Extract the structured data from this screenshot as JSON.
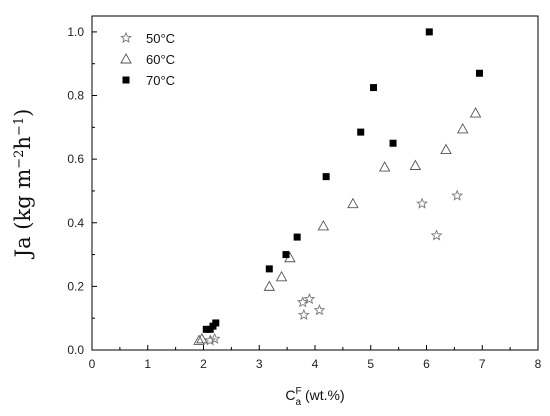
{
  "chart_data": {
    "type": "scatter",
    "xlabel": {
      "base": "C",
      "sup": "F",
      "sub": "a",
      "suffix": " (wt.%)"
    },
    "ylabel": {
      "text": "Ja (kg m",
      "sup1": "−2",
      "mid": "h",
      "sup2": "−1",
      "end": ")"
    },
    "xlim": [
      0,
      8
    ],
    "ylim": [
      0,
      1.05
    ],
    "x_ticks": [
      0,
      1,
      2,
      3,
      4,
      5,
      6,
      7,
      8
    ],
    "x_tick_labels": [
      "0",
      "1",
      "2",
      "3",
      "4",
      "5",
      "6",
      "7",
      "8"
    ],
    "y_ticks": [
      0,
      0.2,
      0.4,
      0.6,
      0.8,
      1.0
    ],
    "y_tick_labels": [
      "0.0",
      "0.2",
      "0.4",
      "0.6",
      "0.8",
      "1.0"
    ],
    "grid": false,
    "legend_position": "top-left",
    "series": [
      {
        "name": "50°C",
        "marker": "star",
        "color": "#777777",
        "points": [
          {
            "x": 2.12,
            "y": 0.03
          },
          {
            "x": 2.2,
            "y": 0.035
          },
          {
            "x": 3.78,
            "y": 0.15
          },
          {
            "x": 3.9,
            "y": 0.16
          },
          {
            "x": 3.8,
            "y": 0.11
          },
          {
            "x": 4.08,
            "y": 0.125
          },
          {
            "x": 5.92,
            "y": 0.46
          },
          {
            "x": 6.18,
            "y": 0.36
          },
          {
            "x": 6.55,
            "y": 0.485
          }
        ]
      },
      {
        "name": "60°C",
        "marker": "triangle-open",
        "color": "#555555",
        "points": [
          {
            "x": 1.92,
            "y": 0.03
          },
          {
            "x": 1.97,
            "y": 0.035
          },
          {
            "x": 3.18,
            "y": 0.2
          },
          {
            "x": 3.4,
            "y": 0.23
          },
          {
            "x": 3.55,
            "y": 0.29
          },
          {
            "x": 4.15,
            "y": 0.39
          },
          {
            "x": 4.68,
            "y": 0.46
          },
          {
            "x": 5.25,
            "y": 0.575
          },
          {
            "x": 5.8,
            "y": 0.58
          },
          {
            "x": 6.35,
            "y": 0.63
          },
          {
            "x": 6.65,
            "y": 0.695
          },
          {
            "x": 6.88,
            "y": 0.745
          }
        ]
      },
      {
        "name": "70°C",
        "marker": "square-filled",
        "color": "#000000",
        "points": [
          {
            "x": 2.05,
            "y": 0.065
          },
          {
            "x": 2.12,
            "y": 0.065
          },
          {
            "x": 2.17,
            "y": 0.075
          },
          {
            "x": 2.22,
            "y": 0.085
          },
          {
            "x": 3.18,
            "y": 0.255
          },
          {
            "x": 3.48,
            "y": 0.3
          },
          {
            "x": 3.68,
            "y": 0.355
          },
          {
            "x": 4.2,
            "y": 0.545
          },
          {
            "x": 4.82,
            "y": 0.685
          },
          {
            "x": 5.05,
            "y": 0.825
          },
          {
            "x": 5.4,
            "y": 0.65
          },
          {
            "x": 6.05,
            "y": 1.0
          },
          {
            "x": 6.95,
            "y": 0.87
          }
        ]
      }
    ]
  }
}
